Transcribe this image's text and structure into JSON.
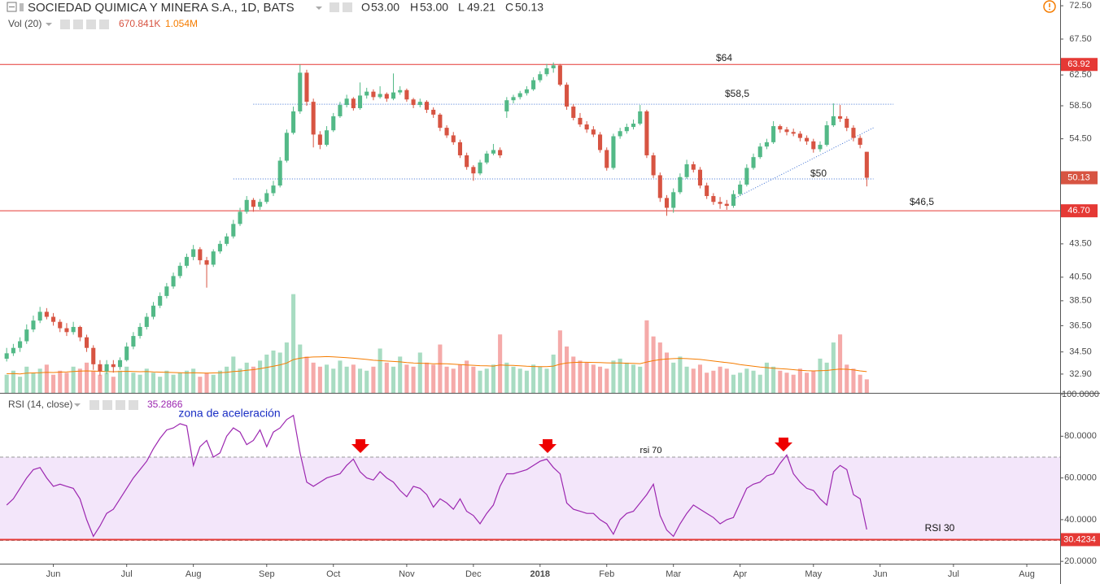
{
  "chart_data": {
    "type": "candlestick",
    "title": "SOCIEDAD QUIMICA Y MINERA S.A., 1D, BATS",
    "ohlc_prefixes": [
      "O",
      "H",
      "L",
      "C"
    ],
    "last_value_labels": [
      "53.00",
      "53.00",
      "49.21",
      "50.13"
    ],
    "log_scale": true,
    "ylim": [
      31.6,
      73.4
    ],
    "yticks": [
      {
        "value": 72.5,
        "label": "72.50"
      },
      {
        "value": 67.5,
        "label": "67.50"
      },
      {
        "value": 62.5,
        "label": "62.50"
      },
      {
        "value": 58.5,
        "label": "58.50"
      },
      {
        "value": 54.5,
        "label": "54.50"
      },
      {
        "value": 43.5,
        "label": "43.50"
      },
      {
        "value": 40.5,
        "label": "40.50"
      },
      {
        "value": 38.5,
        "label": "38.50"
      },
      {
        "value": 36.5,
        "label": "36.50"
      },
      {
        "value": 34.5,
        "label": "34.50"
      },
      {
        "value": 32.9,
        "label": "32.90"
      }
    ],
    "xlim": [
      -1,
      158
    ],
    "xticks": [
      {
        "value": 7,
        "label": "Jun"
      },
      {
        "value": 18,
        "label": "Jul"
      },
      {
        "value": 28,
        "label": "Aug"
      },
      {
        "value": 39,
        "label": "Sep"
      },
      {
        "value": 49,
        "label": "Oct"
      },
      {
        "value": 60,
        "label": "Nov"
      },
      {
        "value": 70,
        "label": "Dec"
      },
      {
        "value": 80,
        "label": "2018"
      },
      {
        "value": 90,
        "label": "Feb"
      },
      {
        "value": 100,
        "label": "Mar"
      },
      {
        "value": 110,
        "label": "Apr"
      },
      {
        "value": 121,
        "label": "May"
      },
      {
        "value": 131,
        "label": "Jun"
      },
      {
        "value": 142,
        "label": "Jul"
      },
      {
        "value": 153,
        "label": "Aug"
      }
    ],
    "colors": {
      "up": "#53b987",
      "down": "#d75442",
      "volume_up": "#a8dcc2",
      "volume_down": "#f5aaa9"
    },
    "ohlc": [
      [
        34.0,
        34.8,
        33.8,
        34.4
      ],
      [
        34.4,
        35.1,
        34.2,
        34.8
      ],
      [
        34.8,
        35.6,
        34.5,
        35.3
      ],
      [
        35.3,
        36.6,
        35.1,
        36.2
      ],
      [
        36.2,
        37.3,
        36.0,
        36.9
      ],
      [
        36.9,
        38.0,
        36.7,
        37.6
      ],
      [
        37.6,
        37.9,
        37.0,
        37.2
      ],
      [
        37.2,
        37.5,
        36.5,
        36.8
      ],
      [
        36.8,
        37.0,
        36.0,
        36.3
      ],
      [
        36.3,
        36.7,
        35.7,
        36.0
      ],
      [
        36.0,
        36.8,
        35.8,
        36.4
      ],
      [
        36.4,
        36.5,
        35.3,
        35.6
      ],
      [
        35.6,
        35.8,
        34.5,
        34.8
      ],
      [
        34.8,
        35.0,
        33.2,
        33.6
      ],
      [
        33.6,
        33.9,
        32.8,
        33.1
      ],
      [
        33.1,
        33.9,
        32.9,
        33.6
      ],
      [
        33.6,
        33.9,
        33.0,
        33.4
      ],
      [
        33.4,
        34.1,
        33.2,
        33.9
      ],
      [
        33.9,
        35.2,
        33.8,
        34.9
      ],
      [
        34.9,
        36.0,
        34.7,
        35.7
      ],
      [
        35.7,
        36.7,
        35.5,
        36.4
      ],
      [
        36.4,
        37.5,
        36.2,
        37.2
      ],
      [
        37.2,
        38.4,
        37.0,
        38.1
      ],
      [
        38.1,
        39.2,
        37.9,
        38.9
      ],
      [
        38.9,
        40.0,
        38.7,
        39.7
      ],
      [
        39.7,
        40.9,
        39.5,
        40.6
      ],
      [
        40.6,
        41.8,
        40.4,
        41.5
      ],
      [
        41.5,
        42.6,
        41.3,
        42.3
      ],
      [
        42.3,
        43.4,
        42.0,
        43.0
      ],
      [
        43.0,
        43.2,
        41.6,
        42.0
      ],
      [
        42.0,
        42.3,
        39.6,
        41.6
      ],
      [
        41.6,
        43.0,
        41.4,
        42.8
      ],
      [
        42.8,
        43.8,
        42.6,
        43.5
      ],
      [
        43.5,
        44.5,
        43.3,
        44.2
      ],
      [
        44.2,
        45.8,
        44.0,
        45.4
      ],
      [
        45.4,
        47.0,
        45.2,
        46.6
      ],
      [
        46.6,
        48.2,
        46.4,
        47.8
      ],
      [
        47.8,
        48.0,
        46.6,
        47.1
      ],
      [
        47.1,
        47.9,
        46.8,
        47.6
      ],
      [
        47.6,
        48.9,
        47.4,
        48.5
      ],
      [
        48.5,
        49.8,
        48.2,
        49.3
      ],
      [
        49.3,
        52.4,
        49.1,
        52.0
      ],
      [
        52.0,
        55.6,
        51.8,
        55.2
      ],
      [
        55.2,
        58.4,
        55.0,
        57.8
      ],
      [
        57.8,
        63.9,
        57.5,
        62.8
      ],
      [
        62.8,
        63.2,
        58.5,
        59.0
      ],
      [
        59.0,
        59.4,
        53.5,
        55.0
      ],
      [
        55.0,
        55.4,
        53.3,
        53.8
      ],
      [
        53.8,
        56.0,
        53.6,
        55.5
      ],
      [
        55.5,
        57.6,
        55.3,
        57.2
      ],
      [
        57.2,
        59.0,
        57.0,
        58.6
      ],
      [
        58.6,
        59.9,
        58.3,
        59.4
      ],
      [
        59.4,
        59.6,
        57.9,
        58.2
      ],
      [
        58.2,
        61.5,
        58.0,
        59.8
      ],
      [
        59.8,
        60.8,
        59.4,
        60.3
      ],
      [
        60.3,
        60.6,
        59.2,
        59.6
      ],
      [
        59.6,
        61.0,
        59.4,
        60.0
      ],
      [
        60.0,
        60.2,
        59.0,
        59.4
      ],
      [
        59.4,
        62.7,
        59.2,
        60.2
      ],
      [
        60.2,
        61.0,
        59.9,
        60.5
      ],
      [
        60.5,
        60.7,
        59.0,
        59.3
      ],
      [
        59.3,
        59.5,
        58.2,
        58.6
      ],
      [
        58.6,
        59.4,
        58.3,
        59.0
      ],
      [
        59.0,
        59.2,
        57.6,
        58.0
      ],
      [
        58.0,
        58.3,
        57.0,
        57.4
      ],
      [
        57.4,
        57.6,
        55.4,
        55.8
      ],
      [
        55.8,
        56.1,
        54.6,
        54.9
      ],
      [
        54.9,
        55.3,
        53.8,
        54.1
      ],
      [
        54.1,
        54.4,
        52.3,
        52.6
      ],
      [
        52.6,
        52.9,
        51.0,
        51.3
      ],
      [
        51.3,
        51.5,
        49.8,
        50.6
      ],
      [
        50.6,
        52.1,
        50.4,
        51.8
      ],
      [
        51.8,
        53.1,
        51.6,
        52.8
      ],
      [
        52.8,
        53.9,
        52.6,
        53.2
      ],
      [
        53.2,
        53.5,
        52.3,
        52.6
      ],
      [
        57.8,
        59.6,
        57.0,
        59.2
      ],
      [
        59.2,
        59.9,
        58.8,
        59.6
      ],
      [
        59.6,
        60.4,
        59.3,
        60.1
      ],
      [
        60.1,
        61.0,
        59.8,
        60.6
      ],
      [
        60.6,
        62.2,
        60.4,
        61.8
      ],
      [
        61.8,
        63.0,
        61.5,
        62.6
      ],
      [
        62.6,
        64.0,
        62.3,
        63.4
      ],
      [
        63.4,
        64.2,
        62.8,
        63.8
      ],
      [
        63.8,
        64.0,
        61.0,
        61.2
      ],
      [
        61.2,
        61.5,
        58.0,
        58.4
      ],
      [
        58.4,
        58.7,
        56.7,
        57.0
      ],
      [
        57.0,
        57.6,
        55.9,
        56.2
      ],
      [
        56.2,
        56.6,
        55.2,
        55.6
      ],
      [
        55.6,
        56.0,
        54.7,
        55.0
      ],
      [
        55.0,
        55.3,
        52.9,
        53.2
      ],
      [
        53.2,
        53.5,
        50.9,
        51.2
      ],
      [
        51.2,
        55.1,
        51.0,
        54.8
      ],
      [
        54.8,
        55.8,
        54.5,
        55.4
      ],
      [
        55.4,
        56.3,
        55.1,
        55.9
      ],
      [
        55.9,
        56.8,
        55.6,
        56.3
      ],
      [
        56.3,
        58.6,
        56.1,
        57.8
      ],
      [
        57.8,
        58.0,
        52.3,
        52.6
      ],
      [
        52.6,
        52.9,
        50.1,
        50.4
      ],
      [
        50.4,
        50.7,
        47.6,
        48.0
      ],
      [
        48.0,
        48.3,
        46.2,
        47.0
      ],
      [
        47.0,
        49.0,
        46.5,
        48.6
      ],
      [
        48.6,
        50.6,
        48.4,
        50.2
      ],
      [
        50.2,
        52.1,
        50.0,
        51.6
      ],
      [
        51.6,
        51.9,
        50.7,
        51.0
      ],
      [
        51.0,
        51.3,
        49.0,
        49.3
      ],
      [
        49.3,
        49.6,
        47.9,
        48.2
      ],
      [
        48.2,
        48.5,
        47.3,
        47.6
      ],
      [
        47.6,
        48.1,
        46.9,
        47.4
      ],
      [
        47.4,
        47.8,
        46.8,
        47.2
      ],
      [
        47.2,
        48.8,
        47.0,
        48.4
      ],
      [
        48.4,
        49.8,
        48.2,
        49.4
      ],
      [
        49.4,
        51.6,
        49.2,
        51.2
      ],
      [
        51.2,
        52.8,
        51.0,
        52.4
      ],
      [
        52.4,
        54.0,
        52.2,
        53.6
      ],
      [
        53.6,
        54.5,
        53.3,
        54.1
      ],
      [
        54.1,
        56.6,
        53.9,
        56.0
      ],
      [
        56.0,
        56.2,
        55.2,
        55.6
      ],
      [
        55.6,
        55.9,
        54.9,
        55.3
      ],
      [
        55.3,
        55.7,
        54.8,
        55.1
      ],
      [
        55.1,
        55.4,
        54.2,
        54.6
      ],
      [
        54.6,
        54.9,
        53.8,
        54.2
      ],
      [
        54.2,
        54.5,
        52.9,
        53.3
      ],
      [
        53.3,
        54.2,
        53.0,
        53.8
      ],
      [
        53.8,
        56.6,
        53.6,
        56.1
      ],
      [
        56.1,
        58.8,
        55.9,
        57.2
      ],
      [
        57.2,
        58.6,
        56.5,
        56.9
      ],
      [
        56.9,
        57.2,
        55.4,
        55.8
      ],
      [
        55.8,
        56.1,
        54.2,
        54.6
      ],
      [
        54.6,
        54.9,
        53.4,
        53.8
      ],
      [
        53.0,
        53.0,
        49.21,
        50.13
      ]
    ],
    "hlines": [
      {
        "value": 63.92,
        "label": "63.92",
        "color": "#e53935"
      },
      {
        "value": 46.7,
        "label": "46.70",
        "color": "#e53935"
      }
    ],
    "levels": [
      {
        "value": 58.7,
        "from": 37,
        "to": 133
      },
      {
        "value": 50,
        "from": 34,
        "to": 130
      }
    ],
    "trend_line": [
      [
        109,
        47.9
      ],
      [
        130,
        55.8
      ]
    ],
    "annotations": [
      "$64",
      "$58,5",
      "$50",
      "$46,5"
    ],
    "volume": {
      "name": "Vol (20)",
      "last_label": "670.841K",
      "ma_label": "1.054M",
      "ma_color": "#f57c00",
      "lim": [
        0,
        19500
      ],
      "values": [
        900,
        1100,
        800,
        1300,
        1000,
        1200,
        1400,
        900,
        1100,
        1000,
        1300,
        1200,
        1500,
        1100,
        900,
        1000,
        800,
        1100,
        1300,
        1000,
        900,
        1200,
        1000,
        800,
        1100,
        900,
        1000,
        1100,
        1200,
        800,
        1000,
        900,
        1100,
        1300,
        1800,
        1200,
        1500,
        1300,
        1600,
        1900,
        2100,
        2000,
        2500,
        4900,
        2400,
        1800,
        1500,
        1300,
        1400,
        1200,
        1600,
        1300,
        1400,
        1200,
        1100,
        1300,
        2200,
        1500,
        1300,
        1800,
        1400,
        1300,
        2000,
        1500,
        1400,
        2400,
        1300,
        1200,
        1400,
        1600,
        1300,
        1100,
        1200,
        1400,
        2900,
        1500,
        1300,
        1200,
        1100,
        1400,
        1300,
        1200,
        1900,
        3100,
        2300,
        1800,
        1600,
        1500,
        1400,
        1300,
        1200,
        1600,
        1700,
        1500,
        1400,
        1300,
        3600,
        2800,
        2500,
        2000,
        1500,
        1800,
        1300,
        1200,
        1400,
        1000,
        1100,
        1300,
        1200,
        900,
        1000,
        1200,
        1100,
        900,
        1500,
        1300,
        1100,
        1000,
        900,
        1200,
        1000,
        1100,
        1700,
        1500,
        2500,
        2900,
        1400,
        1200,
        900,
        670.841
      ],
      "ma": [
        950,
        960,
        940,
        980,
        990,
        1000,
        1020,
        1010,
        1030,
        1040,
        1060,
        1080,
        1090,
        1080,
        1070,
        1060,
        1050,
        1060,
        1070,
        1060,
        1050,
        1060,
        1040,
        1030,
        1020,
        1010,
        1000,
        990,
        1000,
        990,
        980,
        990,
        1000,
        1020,
        1060,
        1080,
        1120,
        1150,
        1200,
        1260,
        1320,
        1390,
        1480,
        1650,
        1720,
        1760,
        1780,
        1790,
        1800,
        1790,
        1770,
        1750,
        1720,
        1690,
        1660,
        1620,
        1600,
        1580,
        1560,
        1540,
        1500,
        1480,
        1470,
        1460,
        1440,
        1450,
        1440,
        1420,
        1400,
        1380,
        1370,
        1350,
        1340,
        1330,
        1380,
        1370,
        1360,
        1340,
        1320,
        1310,
        1300,
        1300,
        1330,
        1420,
        1480,
        1510,
        1520,
        1520,
        1510,
        1500,
        1490,
        1480,
        1480,
        1470,
        1460,
        1450,
        1530,
        1600,
        1650,
        1680,
        1700,
        1710,
        1700,
        1680,
        1660,
        1620,
        1580,
        1540,
        1500,
        1460,
        1400,
        1360,
        1320,
        1280,
        1250,
        1220,
        1200,
        1180,
        1150,
        1120,
        1100,
        1090,
        1100,
        1110,
        1150,
        1180,
        1170,
        1140,
        1090,
        1054
      ]
    },
    "rsi": {
      "name": "RSI (14, close)",
      "color": "#9c27b0",
      "ylim": [
        18.9,
        100.8
      ],
      "yticks": [
        {
          "value": 100,
          "label": "100.0000"
        },
        {
          "value": 80,
          "label": "80.0000"
        },
        {
          "value": 60,
          "label": "60.0000"
        },
        {
          "value": 40,
          "label": "40.0000"
        },
        {
          "value": 20,
          "label": "20.0000"
        }
      ],
      "band": [
        30,
        70
      ],
      "line": {
        "value": 30.4234,
        "label": "30.4234",
        "color": "#e53935"
      },
      "annotations": [
        "zona de aceleración",
        "rsi 70",
        "RSI 30"
      ],
      "values": [
        47,
        50,
        55,
        60,
        64,
        65,
        60,
        56,
        57,
        56,
        55,
        50,
        40,
        32,
        37,
        43,
        45,
        50,
        55,
        60,
        64,
        68,
        74,
        79,
        83,
        84,
        86,
        85,
        66,
        75,
        78,
        70,
        72,
        80,
        84,
        82,
        76,
        78,
        83,
        75,
        82,
        84,
        88,
        90,
        72,
        58,
        56,
        58,
        60,
        61,
        62,
        66,
        69,
        63,
        60,
        59,
        63,
        60,
        58,
        54,
        51,
        56,
        55,
        52,
        46,
        50,
        48,
        45,
        50,
        44,
        42,
        38,
        43,
        47,
        56,
        62,
        62,
        63,
        64,
        66,
        68,
        69,
        65,
        62,
        48,
        45,
        44,
        43,
        43,
        40,
        38,
        33,
        40,
        43,
        44,
        48,
        52,
        57,
        42,
        35,
        32,
        38,
        43,
        47,
        45,
        43,
        41,
        38,
        40,
        41,
        48,
        55,
        57,
        58,
        61,
        62,
        67,
        71,
        62,
        58,
        55,
        54,
        50,
        47,
        63,
        66,
        64,
        52,
        50,
        35.2866
      ]
    }
  }
}
